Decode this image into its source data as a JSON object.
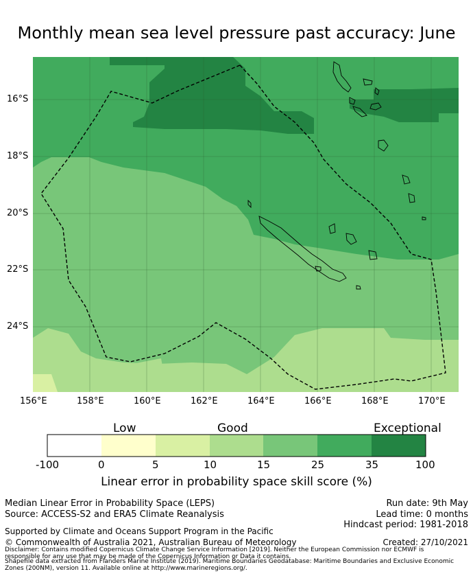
{
  "title": "Monthly mean sea level pressure past accuracy: June",
  "map": {
    "lat_labels": [
      "16°S",
      "18°S",
      "20°S",
      "22°S",
      "24°S"
    ],
    "lon_labels": [
      "156°E",
      "158°E",
      "160°E",
      "162°E",
      "164°E",
      "166°E",
      "168°E",
      "170°E"
    ],
    "extent": {
      "lon": [
        156,
        171
      ],
      "lat": [
        -26.3,
        -14.5
      ]
    }
  },
  "colorbar": {
    "category_labels": [
      "Low",
      "Good",
      "Exceptional"
    ],
    "ticks": [
      "-100",
      "0",
      "5",
      "10",
      "15",
      "25",
      "35",
      "100"
    ],
    "colors": [
      "#ffffff",
      "#ffffcc",
      "#d9f0a3",
      "#addd8e",
      "#78c679",
      "#41ab5d",
      "#238443"
    ],
    "title": "Linear error in probability space skill score (%)"
  },
  "footer": {
    "method": "Median Linear Error in Probability Space (LEPS)",
    "source": "Source: ACCESS-S2 and ERA5 Climate Reanalysis",
    "run_date": "Run date: 9th May",
    "lead_time": "Lead time: 0 months",
    "hindcast": "Hindcast period: 1981-2018",
    "support": "Supported by Climate and Oceans Support Program in the Pacific",
    "copyright": "© Commonwealth of Australia 2021, Australian Bureau of Meteorology",
    "created": "Created: 27/10/2021",
    "disclaimer1": "Disclaimer: Contains modified Copernicus Climate Change Service Information [2019]. Neither the European Commission nor ECMWF is responsible for any use that may be made of the Copernicus Information or Data it contains.",
    "disclaimer2": "Shapefile data extracted from Flanders Marine Institute (2019). Maritime Boundaries Geodatabase: Maritime Boundaries and Exclusive Economic Zones (200NM), version 11. Available online at http://www.marineregions.org/."
  }
}
